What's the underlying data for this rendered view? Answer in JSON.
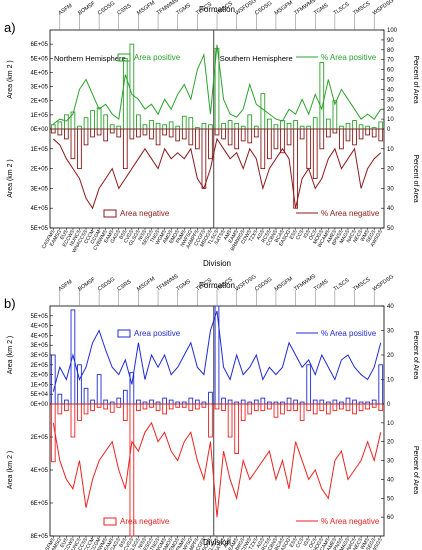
{
  "figure": {
    "panels": [
      {
        "label": "a)",
        "formation_label": "Formation",
        "division_label": "Division",
        "hemisphere_labels": [
          "Northern Hemisphere",
          "Southern Hemisphere"
        ],
        "colors": {
          "positive": "#2ca02c",
          "negative": "#8b1a1a"
        }
      },
      {
        "label": "b)",
        "formation_label": "Formation",
        "division_label": "Division",
        "hemisphere_labels": [],
        "colors": {
          "positive": "#1f2bd4",
          "negative": "#ee2222"
        }
      }
    ],
    "formation_ticks": [
      "ASFM",
      "BOMSF",
      "CSDSG",
      "CSRS",
      "MSGFM",
      "TFMWMS",
      "TGMS",
      "TLSCS",
      "TMSCS",
      "WSFDSG",
      "CSDSG",
      "MSGFM",
      "TFMWMS",
      "TGMS",
      "TLSCS",
      "TMSCS",
      "WSFDSG"
    ],
    "division_ticks": [
      "CASFMS",
      "EAMSG",
      "EUS",
      "ECCWS",
      "NUNCS",
      "WNACCSS",
      "CCCM",
      "CCGM",
      "CVBWMS",
      "EAMS",
      "GAGS",
      "BSS",
      "CVGS",
      "GLSGS",
      "NISS",
      "SESGS",
      "TNGS",
      "WGMS",
      "AMOS",
      "EMOS",
      "PNMS",
      "NWFSG",
      "AAMPFS",
      "CCGFS",
      "MSOGS",
      "TLSCS",
      "SATSS",
      "AMS",
      "EAMS",
      "BRMWGS",
      "CDWS",
      "TZXS",
      "AGS",
      "RCSS",
      "CCBNS",
      "BCAS",
      "EASOG",
      "ESS",
      "CCS",
      "IGS",
      "OCS",
      "MOGS",
      "WCAMS",
      "AMES",
      "BPNSS",
      "MAGS",
      "NACS",
      "NECS",
      "WMS",
      "SEGS",
      "AWSGS"
    ]
  },
  "chart_data": [
    {
      "type": "bar",
      "panel": "a",
      "title": "",
      "xlabel": "Division",
      "x2label": "Formation",
      "ylabel": "Area (km 2 )",
      "y2label": "Percent of Area",
      "split_index": 25,
      "top": {
        "ylim": [
          0,
          700000
        ],
        "yticks": [
          0,
          100000,
          200000,
          300000,
          400000,
          500000,
          600000
        ],
        "ytick_labels": [
          "0E+00",
          "1E+05",
          "2E+05",
          "3E+05",
          "4E+05",
          "5E+05",
          "6E+05"
        ],
        "y2lim": [
          0,
          100
        ],
        "y2ticks": [
          0,
          10,
          20,
          30,
          40,
          50,
          60,
          70,
          80,
          90,
          100
        ],
        "series": [
          {
            "name": "Area positive",
            "kind": "bar",
            "values": [
              30000,
              50000,
              100000,
              120000,
              20000,
              80000,
              130000,
              150000,
              100000,
              30000,
              20000,
              500000,
              600000,
              100000,
              30000,
              60000,
              40000,
              30000,
              50000,
              20000,
              90000,
              80000,
              10000,
              40000,
              30000,
              570000,
              40000,
              60000,
              40000,
              20000,
              100000,
              20000,
              250000,
              70000,
              30000,
              60000,
              40000,
              60000,
              20000,
              20000,
              80000,
              470000,
              70000,
              200000,
              20000,
              40000,
              60000,
              30000,
              20000,
              10000,
              50000
            ]
          },
          {
            "name": "% Area positive",
            "kind": "line",
            "values": [
              5,
              10,
              8,
              15,
              40,
              50,
              35,
              20,
              25,
              15,
              10,
              55,
              35,
              30,
              20,
              25,
              15,
              30,
              20,
              35,
              45,
              30,
              60,
              75,
              15,
              85,
              30,
              15,
              12,
              20,
              45,
              25,
              20,
              15,
              10,
              8,
              20,
              15,
              30,
              15,
              35,
              20,
              50,
              25,
              40,
              30,
              20,
              10,
              15,
              10,
              20
            ]
          }
        ]
      },
      "bottom": {
        "ylim": [
          0,
          500000
        ],
        "yticks": [
          0,
          100000,
          200000,
          300000,
          400000,
          500000
        ],
        "ytick_labels": [
          "0E+00",
          "1E+05",
          "2E+05",
          "3E+05",
          "4E+05",
          "5E+05"
        ],
        "y2lim": [
          0,
          50
        ],
        "y2ticks": [
          0,
          10,
          20,
          30,
          40,
          50
        ],
        "series": [
          {
            "name": "Area negative",
            "kind": "bar",
            "values": [
              20000,
              30000,
              50000,
              150000,
              200000,
              80000,
              40000,
              30000,
              60000,
              20000,
              40000,
              200000,
              50000,
              40000,
              30000,
              50000,
              80000,
              30000,
              40000,
              60000,
              50000,
              80000,
              100000,
              300000,
              150000,
              30000,
              50000,
              80000,
              100000,
              60000,
              70000,
              40000,
              200000,
              150000,
              100000,
              120000,
              80000,
              400000,
              50000,
              200000,
              250000,
              100000,
              40000,
              20000,
              100000,
              60000,
              80000,
              50000,
              30000,
              40000,
              60000
            ]
          },
          {
            "name": "% Area negative",
            "kind": "line",
            "values": [
              5,
              8,
              15,
              20,
              25,
              35,
              40,
              30,
              25,
              20,
              30,
              25,
              20,
              15,
              10,
              15,
              20,
              10,
              15,
              12,
              15,
              10,
              25,
              30,
              20,
              5,
              10,
              15,
              12,
              20,
              10,
              15,
              30,
              20,
              15,
              10,
              15,
              40,
              25,
              20,
              30,
              25,
              15,
              10,
              20,
              15,
              10,
              30,
              20,
              15,
              12
            ]
          }
        ]
      }
    },
    {
      "type": "bar",
      "panel": "b",
      "title": "",
      "xlabel": "Division",
      "x2label": "Formation",
      "ylabel": "Area (km 2 )",
      "y2label": "Percent of Area",
      "split_index": 25,
      "top": {
        "ylim": [
          0,
          500000
        ],
        "yticks": [
          0,
          50000,
          100000,
          150000,
          200000,
          250000,
          300000,
          350000,
          400000,
          450000
        ],
        "ytick_labels": [
          "0E+00",
          "5E+04",
          "1E+05",
          "2E+05",
          "2E+05",
          "3E+05",
          "3E+05",
          "4E+05",
          "4E+05",
          "5E+05"
        ],
        "y2lim": [
          0,
          40
        ],
        "y2ticks": [
          0,
          10,
          20,
          30,
          40
        ],
        "series": [
          {
            "name": "Area positive",
            "kind": "bar",
            "values": [
              250000,
              50000,
              20000,
              480000,
              200000,
              80000,
              20000,
              150000,
              20000,
              10000,
              30000,
              70000,
              160000,
              20000,
              10000,
              20000,
              10000,
              30000,
              20000,
              10000,
              10000,
              30000,
              20000,
              10000,
              60000,
              500000,
              30000,
              20000,
              10000,
              20000,
              10000,
              20000,
              30000,
              10000,
              10000,
              10000,
              30000,
              20000,
              10000,
              200000,
              20000,
              20000,
              10000,
              20000,
              10000,
              30000,
              20000,
              10000,
              10000,
              20000,
              200000
            ]
          },
          {
            "name": "% Area positive",
            "kind": "line",
            "values": [
              5,
              15,
              10,
              20,
              10,
              15,
              25,
              30,
              22,
              15,
              12,
              18,
              8,
              25,
              10,
              20,
              15,
              20,
              12,
              15,
              20,
              25,
              15,
              12,
              30,
              38,
              15,
              10,
              20,
              12,
              15,
              20,
              10,
              15,
              12,
              15,
              25,
              20,
              15,
              18,
              12,
              20,
              15,
              10,
              18,
              20,
              15,
              12,
              10,
              15,
              25
            ]
          }
        ]
      },
      "bottom": {
        "ylim": [
          0,
          800000
        ],
        "yticks": [
          0,
          200000,
          400000,
          600000,
          800000
        ],
        "ytick_labels": [
          "0E+00",
          "2E+05",
          "4E+05",
          "6E+05",
          "8E+05"
        ],
        "y2lim": [
          0,
          70
        ],
        "y2ticks": [
          0,
          10,
          20,
          30,
          40,
          50,
          60
        ],
        "series": [
          {
            "name": "Area negative",
            "kind": "bar",
            "values": [
              350000,
              60000,
              40000,
              200000,
              100000,
              60000,
              40000,
              20000,
              30000,
              50000,
              20000,
              100000,
              800000,
              40000,
              30000,
              20000,
              40000,
              60000,
              30000,
              20000,
              20000,
              40000,
              30000,
              20000,
              200000,
              30000,
              40000,
              200000,
              300000,
              100000,
              60000,
              40000,
              40000,
              30000,
              80000,
              60000,
              40000,
              40000,
              100000,
              40000,
              60000,
              40000,
              60000,
              40000,
              30000,
              40000,
              60000,
              40000,
              30000,
              20000,
              40000
            ]
          },
          {
            "name": "% Area negative",
            "kind": "line",
            "values": [
              10,
              30,
              40,
              45,
              30,
              55,
              40,
              30,
              25,
              20,
              35,
              45,
              20,
              25,
              15,
              10,
              20,
              15,
              25,
              30,
              20,
              15,
              30,
              40,
              20,
              60,
              25,
              40,
              50,
              30,
              40,
              35,
              30,
              25,
              40,
              30,
              45,
              20,
              30,
              40,
              35,
              45,
              50,
              30,
              25,
              40,
              35,
              30,
              20,
              30,
              15
            ]
          }
        ]
      }
    }
  ]
}
